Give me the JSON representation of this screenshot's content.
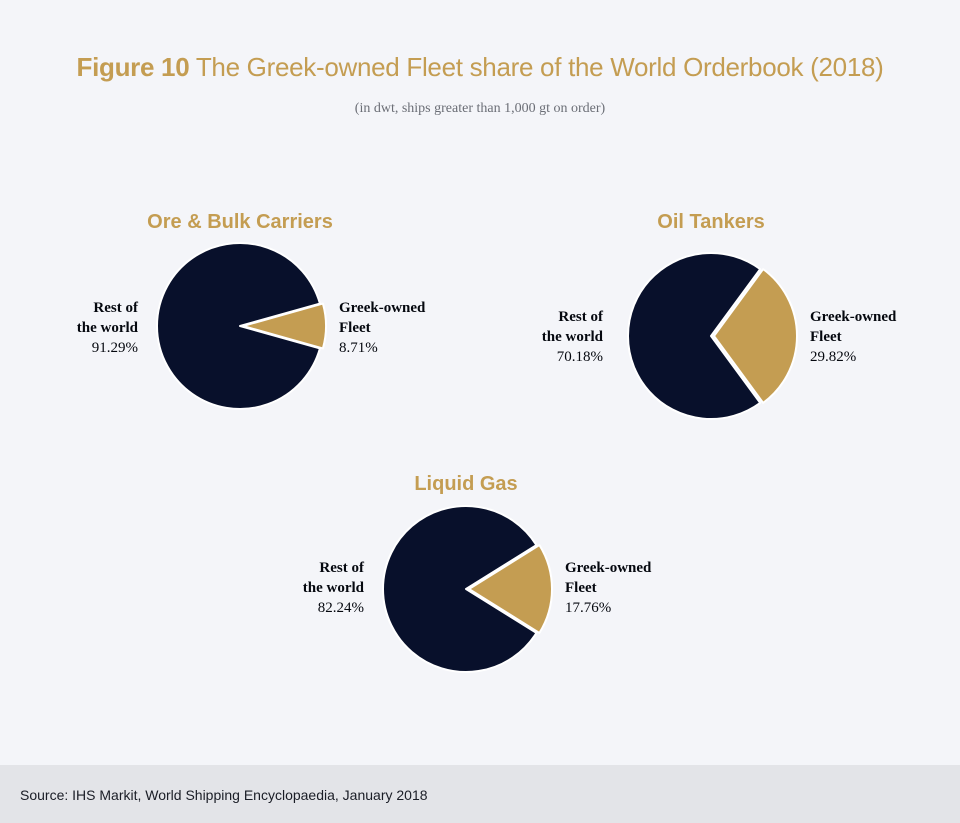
{
  "header": {
    "figure_label": "Figure 10",
    "title_text": " The Greek-owned Fleet share of the World Orderbook (2018)",
    "subtitle": "(in dwt, ships greater than 1,000 gt on order)"
  },
  "colors": {
    "rest_of_world": "#08102b",
    "greek_owned": "#c49d52",
    "accent_title": "#c49d52"
  },
  "chart_data": [
    {
      "type": "pie",
      "title": "Ore & Bulk Carriers",
      "slices": [
        {
          "name_line1": "Rest of",
          "name_line2": "the world",
          "value": 91.29,
          "label": "91.29%"
        },
        {
          "name_line1": "Greek-owned",
          "name_line2": "Fleet",
          "value": 8.71,
          "label": "8.71%"
        }
      ]
    },
    {
      "type": "pie",
      "title": "Oil Tankers",
      "slices": [
        {
          "name_line1": "Rest of",
          "name_line2": "the world",
          "value": 70.18,
          "label": "70.18%"
        },
        {
          "name_line1": "Greek-owned",
          "name_line2": "Fleet",
          "value": 29.82,
          "label": "29.82%"
        }
      ]
    },
    {
      "type": "pie",
      "title": "Liquid Gas",
      "slices": [
        {
          "name_line1": "Rest of",
          "name_line2": "the world",
          "value": 82.24,
          "label": "82.24%"
        },
        {
          "name_line1": "Greek-owned",
          "name_line2": "Fleet",
          "value": 17.76,
          "label": "17.76%"
        }
      ]
    }
  ],
  "footer": {
    "source": "Source: IHS Markit, World Shipping Encyclopaedia, January 2018"
  }
}
